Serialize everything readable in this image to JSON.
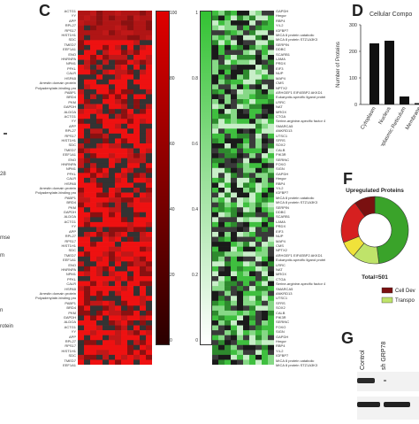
{
  "panels": {
    "c_letter": "C",
    "d_letter": "D",
    "f_letter": "F",
    "g_letter": "G"
  },
  "left_fragments": [
    "28",
    "mse",
    "m",
    "n",
    "rotein"
  ],
  "heatmap_red": {
    "row_labels_sample": [
      "ACTG1",
      "YY",
      "APP",
      "RPL27",
      "RPS17",
      "HIST1H1",
      "SDC",
      "TMED7",
      "EEF1A1",
      "ENO",
      "HNRNPA",
      "NPM1",
      "PFKL",
      "CALR",
      "HSPA5",
      "Arrestin domain protein",
      "Polyadenylate-binding protein",
      "PABP1",
      "BRD4",
      "PKM",
      "GAPDH",
      "ALDOA"
    ],
    "scale_ticks": [
      "100",
      "80",
      "60",
      "40",
      "20",
      "0"
    ]
  },
  "heatmap_green": {
    "row_labels_sample": [
      "GAPDH",
      "Hmgcr",
      "RBP4",
      "Y4-2",
      "IGFBP7",
      "MICA 8 protein catabolic",
      "MICA 8 protein STZ1A3K3",
      "SERPIN",
      "DDBC",
      "SCARB1",
      "LAMA",
      "PRDX",
      "EIF3",
      "NUP",
      "MAP4",
      "CMS",
      "NPTX2",
      "ARHGEF1 EIF4EBP2 AKKD1",
      "Eukaryotic-specific ligand protein",
      "LRRC",
      "NAT",
      "MRGX",
      "CTGA",
      "Serine-arginine-specific factor 4",
      "SMARCA5",
      "ANKRD13",
      "UTSC1",
      "SFRS",
      "SOX2",
      "CALB",
      "PIK3R",
      "SERINC",
      "FOXO",
      "SIGN"
    ],
    "scale_ticks": [
      "1",
      "0.8",
      "0.6",
      "0.4",
      "0.2",
      "0"
    ]
  },
  "chart_data": [
    {
      "type": "bar",
      "title": "Cellular Compo",
      "ylabel": "Number of Proteins",
      "categories": [
        "Cytoplasm",
        "Nucleus",
        "Endoplasmic Reticulum",
        "Membrane"
      ],
      "values": [
        230,
        240,
        30,
        5
      ],
      "ylim": [
        0,
        300
      ],
      "yticks": [
        "0",
        "100",
        "200",
        "300"
      ],
      "color": "#111111"
    },
    {
      "type": "pie",
      "donut": true,
      "title": "Upregulated Proteins",
      "total_label": "Total=501",
      "slices": [
        {
          "value": 48,
          "color": "#3aa32a"
        },
        {
          "value": 13,
          "color": "#bfe36a"
        },
        {
          "value": 8,
          "color": "#f0e23a"
        },
        {
          "value": 21,
          "color": "#d62020"
        },
        {
          "value": 10,
          "color": "#7a1010"
        }
      ],
      "legend": [
        {
          "label": "Cell Dev",
          "color": "#7a1010"
        },
        {
          "label": "Transpo",
          "color": "#bfe36a"
        }
      ]
    }
  ],
  "blot": {
    "lanes": [
      "Control",
      "sh GRP78"
    ]
  }
}
